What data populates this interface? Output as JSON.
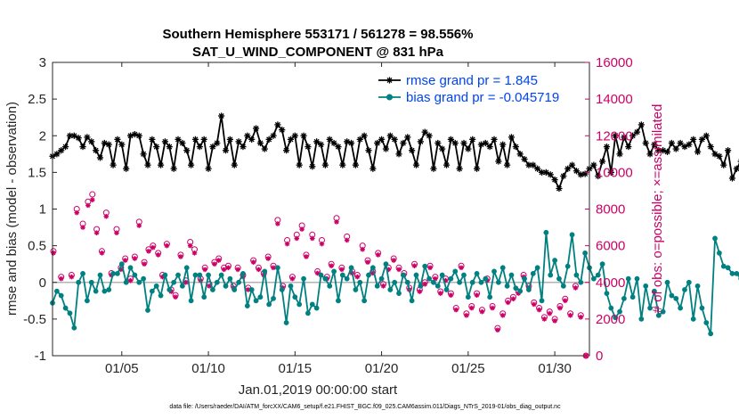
{
  "chart_data": {
    "type": "line",
    "title": "Southern Hemisphere 553171 / 561278 = 98.556%",
    "subtitle": "SAT_U_WIND_COMPONENT @ 831 hPa",
    "xlabel": "Jan.01,2019 00:00:00 start",
    "ylabel": "rmse and bias (model - observation)",
    "y2label": "# of obs: o=possible; ×=assimilated",
    "xlim": [
      1,
      32
    ],
    "ylim": [
      -1,
      3
    ],
    "y2lim": [
      0,
      16000
    ],
    "x_ticks": [
      5,
      10,
      15,
      20,
      25,
      30
    ],
    "x_tick_labels": [
      "01/05",
      "01/10",
      "01/15",
      "01/20",
      "01/25",
      "01/30"
    ],
    "y_ticks": [
      -1,
      -0.5,
      0,
      0.5,
      1,
      1.5,
      2,
      2.5,
      3
    ],
    "y_tick_labels": [
      "-1",
      "-0.5",
      "0",
      "0.5",
      "1",
      "1.5",
      "2",
      "2.5",
      "3"
    ],
    "y2_ticks": [
      0,
      2000,
      4000,
      6000,
      8000,
      10000,
      12000,
      14000,
      16000
    ],
    "y2_tick_labels": [
      "0",
      "2000",
      "4000",
      "6000",
      "8000",
      "10000",
      "12000",
      "14000",
      "16000"
    ],
    "x_start": 1.0,
    "x_step": 0.25,
    "series": [
      {
        "name": "rmse grand pr = 1.845",
        "axis": "left",
        "color": "#000000",
        "marker": "star",
        "values": [
          1.72,
          1.75,
          1.8,
          1.85,
          2.0,
          2.0,
          1.97,
          1.85,
          1.98,
          1.92,
          1.8,
          1.7,
          1.9,
          1.88,
          1.6,
          1.95,
          1.88,
          1.55,
          2.0,
          2.02,
          2.0,
          1.75,
          1.6,
          1.95,
          1.85,
          1.6,
          1.92,
          1.85,
          1.55,
          1.95,
          1.9,
          1.8,
          1.6,
          1.95,
          1.85,
          1.95,
          1.55,
          1.85,
          1.9,
          2.27,
          1.8,
          1.95,
          1.6,
          1.92,
          1.85,
          2.0,
          1.95,
          2.1,
          1.9,
          1.82,
          1.95,
          2.0,
          2.15,
          2.08,
          1.8,
          1.95,
          2.0,
          1.6,
          2.0,
          1.85,
          1.58,
          1.92,
          1.88,
          1.6,
          1.95,
          1.9,
          1.85,
          1.6,
          1.92,
          1.9,
          1.6,
          1.95,
          2.0,
          1.8,
          1.55,
          1.9,
          1.95,
          1.82,
          2.0,
          1.95,
          1.75,
          1.9,
          1.98,
          1.8,
          1.6,
          1.92,
          2.05,
          2.0,
          1.55,
          1.9,
          1.82,
          1.6,
          1.95,
          1.9,
          1.55,
          1.9,
          1.82,
          1.95,
          1.55,
          1.88,
          1.9,
          1.85,
          1.95,
          1.65,
          1.88,
          1.6,
          1.98,
          1.85,
          1.75,
          1.68,
          1.6,
          1.6,
          1.55,
          1.5,
          1.5,
          1.47,
          1.4,
          1.28,
          1.45,
          1.55,
          1.6,
          1.52,
          1.47,
          1.48,
          1.55,
          1.6,
          1.45,
          1.65,
          1.85,
          1.5,
          2.0,
          1.75,
          1.98,
          1.85,
          2.0,
          2.05,
          2.15,
          1.9,
          1.75,
          1.88,
          1.8,
          1.8,
          1.78,
          1.9,
          1.82,
          1.9,
          1.85,
          1.88,
          1.95,
          1.78,
          1.95,
          2.0,
          1.85,
          1.75,
          1.72,
          1.6,
          1.8,
          1.42,
          1.55,
          1.65,
          1.5,
          1.45
        ]
      },
      {
        "name": "bias grand pr = -0.045719",
        "axis": "left",
        "color": "#008080",
        "marker": "circle",
        "values": [
          -0.28,
          -0.12,
          -0.18,
          -0.35,
          -0.42,
          -0.62,
          0.0,
          0.12,
          -0.25,
          0.0,
          -0.12,
          0.1,
          -0.12,
          -0.1,
          0.12,
          0.12,
          0.25,
          0.0,
          0.2,
          0.1,
          0.0,
          0.05,
          -0.38,
          -0.12,
          -0.05,
          -0.18,
          0.1,
          -0.1,
          0.0,
          0.1,
          -0.05,
          0.2,
          -0.25,
          0.1,
          0.1,
          -0.2,
          0.1,
          -0.1,
          0.0,
          0.1,
          -0.05,
          0.05,
          -0.1,
          0.0,
          0.12,
          -0.32,
          -0.1,
          -0.25,
          -0.2,
          0.15,
          -0.3,
          -0.22,
          0.2,
          -0.1,
          -0.55,
          -0.05,
          -0.2,
          -0.3,
          0.05,
          -0.42,
          -0.3,
          -0.35,
          0.1,
          0.05,
          -0.05,
          0.15,
          -0.25,
          0.1,
          0.05,
          0.2,
          -0.1,
          0.0,
          -0.25,
          0.1,
          0.2,
          -0.05,
          0.05,
          0.25,
          -0.1,
          0.0,
          -0.15,
          0.1,
          0.0,
          -0.25,
          0.1,
          -0.05,
          0.22,
          0.05,
          0.0,
          -0.05,
          0.1,
          -0.1,
          0.05,
          0.15,
          0.0,
          0.1,
          -0.2,
          0.0,
          0.12,
          0.0,
          0.05,
          -0.2,
          0.15,
          0.0,
          0.2,
          -0.05,
          0.1,
          -0.08,
          -0.12,
          0.05,
          -0.1,
          0.12,
          0.2,
          -0.25,
          0.68,
          0.1,
          0.3,
          0.05,
          -0.05,
          0.22,
          0.65,
          0.1,
          0.0,
          0.4,
          0.2,
          0.05,
          0.1,
          0.25,
          -0.15,
          -0.35,
          -0.48,
          -0.4,
          -0.22,
          0.05,
          -0.2,
          0.05,
          -0.5,
          -0.05,
          -0.35,
          -0.12,
          -0.45,
          -0.4,
          0.0,
          -0.18,
          -0.22,
          -0.35,
          -0.1,
          0.0,
          -0.5,
          -0.05,
          -0.35,
          -0.55,
          -0.7,
          0.6,
          0.4,
          0.22,
          0.2,
          0.12,
          0.12,
          0.05,
          0.32
        ]
      },
      {
        "name": "obs possible",
        "axis": "right",
        "color": "#cc0066",
        "marker": "o",
        "x": [
          1.05,
          1.5,
          2.1,
          2.4,
          2.75,
          3.05,
          3.3,
          3.55,
          3.85,
          4.1,
          4.4,
          4.7,
          4.95,
          5.2,
          5.5,
          5.75,
          6.0,
          6.3,
          6.55,
          6.8,
          7.1,
          7.35,
          7.6,
          7.85,
          8.1,
          8.4,
          8.7,
          8.95,
          9.2,
          9.55,
          9.8,
          10.05,
          10.35,
          10.6,
          10.9,
          11.15,
          11.45,
          11.7,
          12.0,
          12.3,
          12.6,
          12.9,
          13.2,
          13.45,
          13.75,
          14.0,
          14.3,
          14.55,
          14.85,
          15.1,
          15.4,
          15.65,
          16.0,
          16.3,
          16.55,
          16.85,
          17.1,
          17.4,
          17.7,
          18.0,
          18.3,
          18.6,
          18.9,
          19.2,
          19.5,
          19.8,
          20.1,
          20.4,
          20.7,
          21.0,
          21.3,
          21.6,
          21.9,
          22.2,
          22.5,
          22.8,
          23.1,
          23.4,
          23.7,
          24.0,
          24.3,
          24.6,
          24.9,
          25.2,
          25.5,
          25.8,
          26.1,
          26.4,
          26.7,
          27.0,
          27.3,
          27.6,
          27.9,
          28.2,
          28.5,
          28.8,
          29.1,
          29.4,
          29.7,
          30.0,
          30.3,
          30.6,
          30.9,
          31.2,
          31.5,
          31.8
        ],
        "values": [
          5700,
          4300,
          4400,
          8000,
          7200,
          8400,
          8800,
          6900,
          5700,
          7800,
          4500,
          6900,
          4800,
          5300,
          4200,
          5400,
          7300,
          5100,
          5800,
          6000,
          5600,
          4400,
          6100,
          3600,
          3300,
          5500,
          4100,
          6200,
          5800,
          4200,
          4800,
          3900,
          5100,
          5300,
          4800,
          4900,
          3800,
          4800,
          4400,
          3700,
          5200,
          4800,
          4500,
          5400,
          4900,
          7400,
          3800,
          6300,
          4300,
          6600,
          7100,
          5500,
          6600,
          4600,
          6300,
          4300,
          5000,
          7500,
          4800,
          6500,
          4600,
          4400,
          6000,
          5200,
          4600,
          5600,
          3900,
          4800,
          5300,
          4800,
          4500,
          3700,
          5000,
          3600,
          4000,
          4900,
          4300,
          3500,
          4200,
          3400,
          2600,
          4900,
          2300,
          2700,
          3400,
          2500,
          4200,
          2700,
          1500,
          2300,
          3000,
          3200,
          3500,
          4400,
          3800,
          2900,
          2600,
          2100,
          2400,
          2000,
          2700,
          3100,
          2300,
          3800,
          2200,
          0
        ]
      },
      {
        "name": "obs assimilated",
        "axis": "right",
        "color": "#cc0066",
        "marker": "x",
        "x": [
          1.05,
          1.5,
          2.1,
          2.4,
          2.75,
          3.05,
          3.3,
          3.55,
          3.85,
          4.1,
          4.4,
          4.7,
          4.95,
          5.2,
          5.5,
          5.75,
          6.0,
          6.3,
          6.55,
          6.8,
          7.1,
          7.35,
          7.6,
          7.85,
          8.1,
          8.4,
          8.7,
          8.95,
          9.2,
          9.55,
          9.8,
          10.05,
          10.35,
          10.6,
          10.9,
          11.15,
          11.45,
          11.7,
          12.0,
          12.3,
          12.6,
          12.9,
          13.2,
          13.45,
          13.75,
          14.0,
          14.3,
          14.55,
          14.85,
          15.1,
          15.4,
          15.65,
          16.0,
          16.3,
          16.55,
          16.85,
          17.1,
          17.4,
          17.7,
          18.0,
          18.3,
          18.6,
          18.9,
          19.2,
          19.5,
          19.8,
          20.1,
          20.4,
          20.7,
          21.0,
          21.3,
          21.6,
          21.9,
          22.2,
          22.5,
          22.8,
          23.1,
          23.4,
          23.7,
          24.0,
          24.3,
          24.6,
          24.9,
          25.2,
          25.5,
          25.8,
          26.1,
          26.4,
          26.7,
          27.0,
          27.3,
          27.6,
          27.9,
          28.2,
          28.5,
          28.8,
          29.1,
          29.4,
          29.7,
          30.0,
          30.3,
          30.6,
          30.9,
          31.2,
          31.5,
          31.8
        ],
        "values": [
          5600,
          4200,
          4300,
          7800,
          7000,
          8200,
          8500,
          6700,
          5600,
          7600,
          4400,
          6700,
          4700,
          5200,
          4100,
          5300,
          7100,
          5000,
          5700,
          5900,
          5500,
          4300,
          6000,
          3500,
          3200,
          5400,
          4000,
          6000,
          5600,
          4100,
          4700,
          3800,
          5000,
          5200,
          4700,
          4800,
          3700,
          4700,
          4300,
          3600,
          5100,
          4700,
          4400,
          5300,
          4800,
          7200,
          3700,
          6100,
          4200,
          6400,
          6900,
          5400,
          6400,
          4500,
          6100,
          4200,
          4900,
          7300,
          4700,
          6300,
          4500,
          4300,
          5800,
          5100,
          4500,
          5500,
          3800,
          4700,
          5200,
          4700,
          4400,
          3600,
          4900,
          3500,
          3900,
          4800,
          4200,
          3400,
          4100,
          3300,
          2500,
          4800,
          2200,
          2600,
          3300,
          2400,
          4100,
          2600,
          1400,
          2200,
          2900,
          3100,
          3400,
          4300,
          3700,
          2800,
          2500,
          2000,
          2300,
          1900,
          2600,
          3000,
          2200,
          3700,
          2100,
          0
        ]
      }
    ],
    "legend": [
      "rmse grand pr = 1.845",
      "bias grand pr = -0.045719"
    ],
    "legend_position": "top-right",
    "footer": "data file: /Users/raeder/DAI/ATM_forcXX/CAM6_setup/f.e21.FHIST_BGC.f09_025.CAM6assim.011/Diags_NTrS_2019-01/obs_diag_output.nc"
  }
}
